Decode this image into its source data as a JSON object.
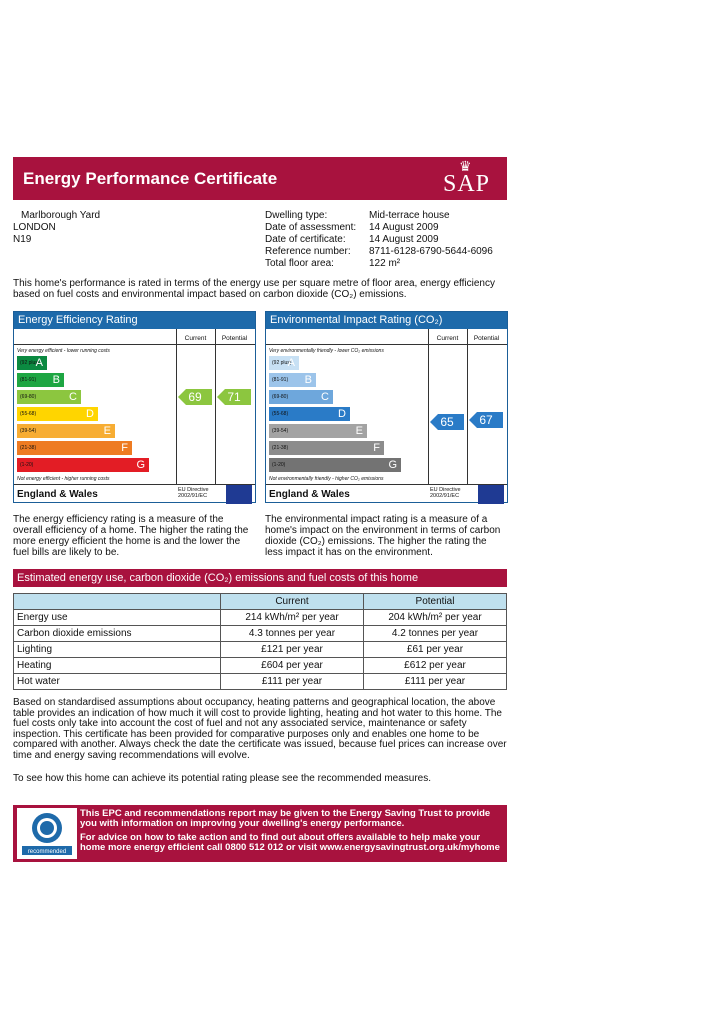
{
  "header": {
    "title": "Energy Performance Certificate",
    "logo": "SAP"
  },
  "address": {
    "line1": "Marlborough Yard",
    "line2": "LONDON",
    "line3": "N19"
  },
  "details": [
    {
      "label": "Dwelling type:",
      "value": "Mid-terrace house"
    },
    {
      "label": "Date of assessment:",
      "value": "14 August 2009"
    },
    {
      "label": "Date of certificate:",
      "value": "14 August 2009"
    },
    {
      "label": "Reference number:",
      "value": "8711-6128-6790-5644-6096"
    },
    {
      "label": "Total floor area:",
      "value": "122 m²"
    }
  ],
  "intro": "This home's performance is rated in terms of the energy use per square metre of floor area, energy efficiency based on fuel costs and environmental impact based on carbon dioxide (CO₂) emissions.",
  "efficiency": {
    "title": "Energy Efficiency Rating",
    "current_label": "Current",
    "potential_label": "Potential",
    "top_note": "Very energy efficient - lower running costs",
    "bottom_note": "Not energy efficient - higher running costs",
    "footer": "England & Wales",
    "eu": "EU Directive 2002/91/EC",
    "current": "69",
    "potential": "71",
    "bands": [
      {
        "range": "(92 plus)",
        "letter": "A",
        "color": "#0b8a41"
      },
      {
        "range": "(81-91)",
        "letter": "B",
        "color": "#1ea643"
      },
      {
        "range": "(69-80)",
        "letter": "C",
        "color": "#8cc63f"
      },
      {
        "range": "(55-68)",
        "letter": "D",
        "color": "#ffd500"
      },
      {
        "range": "(39-54)",
        "letter": "E",
        "color": "#f7ad33"
      },
      {
        "range": "(21-38)",
        "letter": "F",
        "color": "#ee7b22"
      },
      {
        "range": "(1-20)",
        "letter": "G",
        "color": "#e31d25"
      }
    ],
    "current_color": "#8cc63f",
    "potential_color": "#8cc63f"
  },
  "environmental": {
    "title": "Environmental Impact Rating (CO₂)",
    "current_label": "Current",
    "potential_label": "Potential",
    "top_note": "Very environmentally friendly - lower CO₂ emissions",
    "bottom_note": "Not environmentally friendly - higher CO₂ emissions",
    "footer": "England & Wales",
    "eu": "EU Directive 2002/91/EC",
    "current": "65",
    "potential": "67",
    "bands": [
      {
        "range": "(92 plus)",
        "letter": "A",
        "color": "#c7e0f4"
      },
      {
        "range": "(81-91)",
        "letter": "B",
        "color": "#9cc4ea"
      },
      {
        "range": "(69-80)",
        "letter": "C",
        "color": "#6ea7dc"
      },
      {
        "range": "(55-68)",
        "letter": "D",
        "color": "#2a7bc7"
      },
      {
        "range": "(39-54)",
        "letter": "E",
        "color": "#a3a3a3"
      },
      {
        "range": "(21-38)",
        "letter": "F",
        "color": "#8c8c8c"
      },
      {
        "range": "(1-20)",
        "letter": "G",
        "color": "#737373"
      }
    ],
    "current_color": "#2a7bc7",
    "potential_color": "#2a7bc7"
  },
  "desc_left": "The energy efficiency rating is a measure of the overall efficiency of a home. The higher the rating the more energy efficient the home is and the lower the fuel bills are likely to be.",
  "desc_right": "The environmental impact rating is a measure of a home's impact on the environment in terms of carbon dioxide (CO₂) emissions. The higher the rating the less impact it has on the environment.",
  "estimate_title": "Estimated energy use, carbon dioxide (CO₂) emissions and fuel costs of this home",
  "table": {
    "headers": [
      "",
      "Current",
      "Potential"
    ],
    "rows": [
      [
        "Energy use",
        "214 kWh/m² per year",
        "204 kWh/m² per year"
      ],
      [
        "Carbon dioxide emissions",
        "4.3 tonnes per year",
        "4.2 tonnes per year"
      ],
      [
        "Lighting",
        "£121 per year",
        "£61 per year"
      ],
      [
        "Heating",
        "£604 per year",
        "£612 per year"
      ],
      [
        "Hot water",
        "£111 per year",
        "£111 per year"
      ]
    ]
  },
  "notes": "Based on standardised assumptions about occupancy, heating patterns and geographical location, the above table provides an indication of how much it will cost to provide lighting, heating and hot water to this home. The fuel costs only take into account the cost of fuel and not any associated service, maintenance or safety inspection. This certificate has been provided for comparative purposes only and enables one home to be compared with another. Always check the date the certificate was issued, because fuel prices can increase over time and energy saving recommendations will evolve.",
  "notes2": "To see how this home can achieve its potential rating please see the recommended measures.",
  "est": {
    "para1": "This EPC and recommendations report may be given to the Energy Saving Trust to provide you with information on improving your dwelling's energy performance.",
    "para2": "For advice on how to take action and to find out about offers available to help make your home more energy efficient call 0800 512 012 or visit www.energysavingtrust.org.uk/myhome",
    "logo_text": "energy saving",
    "logo_sub": "recommended"
  }
}
